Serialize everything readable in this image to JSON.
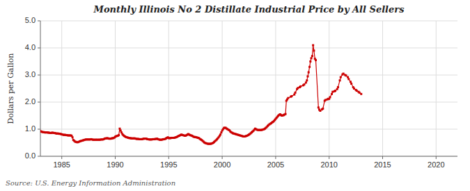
{
  "chart_data": {
    "type": "line",
    "title": "Monthly Illinois No 2 Distillate Industrial Price by All Sellers",
    "ylabel": "Dollars per Gallon",
    "annotations": [
      "Source: U.S. Energy Information Administration"
    ],
    "color": "#cc0000",
    "marker": "square",
    "grid": true,
    "xlim": [
      1983,
      2022
    ],
    "ylim": [
      0.0,
      5.0
    ],
    "xticks": [
      1985,
      1990,
      1995,
      2000,
      2005,
      2010,
      2015,
      2020
    ],
    "yticks": [
      {
        "value": 0.0,
        "label": "0.0"
      },
      {
        "value": 1.0,
        "label": "1.0"
      },
      {
        "value": 2.0,
        "label": "2.0"
      },
      {
        "value": 3.0,
        "label": "3.0"
      },
      {
        "value": 4.0,
        "label": "4.0"
      },
      {
        "value": 5.0,
        "label": "5.0"
      }
    ],
    "x": [
      1983.0,
      1983.08,
      1983.17,
      1983.25,
      1983.33,
      1983.42,
      1983.5,
      1983.58,
      1983.67,
      1983.75,
      1983.83,
      1983.92,
      1984.0,
      1984.08,
      1984.17,
      1984.25,
      1984.33,
      1984.42,
      1984.5,
      1984.58,
      1984.67,
      1984.75,
      1984.83,
      1984.92,
      1985.0,
      1985.08,
      1985.17,
      1985.25,
      1985.33,
      1985.42,
      1985.5,
      1985.58,
      1985.67,
      1985.75,
      1985.83,
      1985.92,
      1986.0,
      1986.08,
      1986.17,
      1986.25,
      1986.33,
      1986.42,
      1986.5,
      1986.58,
      1986.67,
      1986.75,
      1986.83,
      1986.92,
      1987.0,
      1987.08,
      1987.17,
      1987.25,
      1987.33,
      1987.42,
      1987.5,
      1987.58,
      1987.67,
      1987.75,
      1987.83,
      1987.92,
      1988.0,
      1988.08,
      1988.17,
      1988.25,
      1988.33,
      1988.42,
      1988.5,
      1988.58,
      1988.67,
      1988.75,
      1988.83,
      1988.92,
      1989.0,
      1989.08,
      1989.17,
      1989.25,
      1989.33,
      1989.42,
      1989.5,
      1989.58,
      1989.67,
      1989.75,
      1989.83,
      1989.92,
      1990.0,
      1990.08,
      1990.17,
      1990.25,
      1990.33,
      1990.42,
      1990.5,
      1990.58,
      1990.67,
      1990.75,
      1990.83,
      1990.92,
      1991.0,
      1991.08,
      1991.17,
      1991.25,
      1991.33,
      1991.42,
      1991.5,
      1991.58,
      1991.67,
      1991.75,
      1991.83,
      1991.92,
      1992.0,
      1992.08,
      1992.17,
      1992.25,
      1992.33,
      1992.42,
      1992.5,
      1992.58,
      1992.67,
      1992.75,
      1992.83,
      1992.92,
      1993.0,
      1993.08,
      1993.17,
      1993.25,
      1993.33,
      1993.42,
      1993.5,
      1993.58,
      1993.67,
      1993.75,
      1993.83,
      1993.92,
      1994.0,
      1994.08,
      1994.17,
      1994.25,
      1994.33,
      1994.42,
      1994.5,
      1994.58,
      1994.67,
      1994.75,
      1994.83,
      1994.92,
      1995.0,
      1995.08,
      1995.17,
      1995.25,
      1995.33,
      1995.42,
      1995.5,
      1995.58,
      1995.67,
      1995.75,
      1995.83,
      1995.92,
      1996.0,
      1996.08,
      1996.17,
      1996.25,
      1996.33,
      1996.42,
      1996.5,
      1996.58,
      1996.67,
      1996.75,
      1996.83,
      1996.92,
      1997.0,
      1997.08,
      1997.17,
      1997.25,
      1997.33,
      1997.42,
      1997.5,
      1997.58,
      1997.67,
      1997.75,
      1997.83,
      1997.92,
      1998.0,
      1998.08,
      1998.17,
      1998.25,
      1998.33,
      1998.42,
      1998.5,
      1998.58,
      1998.67,
      1998.75,
      1998.83,
      1998.92,
      1999.0,
      1999.08,
      1999.17,
      1999.25,
      1999.33,
      1999.42,
      1999.5,
      1999.58,
      1999.67,
      1999.75,
      1999.83,
      1999.92,
      2000.0,
      2000.08,
      2000.17,
      2000.25,
      2000.33,
      2000.42,
      2000.5,
      2000.58,
      2000.67,
      2000.75,
      2000.83,
      2000.92,
      2001.0,
      2001.08,
      2001.17,
      2001.25,
      2001.33,
      2001.42,
      2001.5,
      2001.58,
      2001.67,
      2001.75,
      2001.83,
      2001.92,
      2002.0,
      2002.08,
      2002.17,
      2002.25,
      2002.33,
      2002.42,
      2002.5,
      2002.58,
      2002.67,
      2002.75,
      2002.83,
      2002.92,
      2003.0,
      2003.08,
      2003.17,
      2003.25,
      2003.33,
      2003.42,
      2003.5,
      2003.58,
      2003.67,
      2003.75,
      2003.83,
      2003.92,
      2004.0,
      2004.08,
      2004.17,
      2004.25,
      2004.33,
      2004.42,
      2004.5,
      2004.58,
      2004.67,
      2004.75,
      2004.83,
      2004.92,
      2005.0,
      2005.08,
      2005.17,
      2005.25,
      2005.33,
      2005.42,
      2005.5,
      2005.58,
      2005.67,
      2005.75,
      2005.83,
      2005.92,
      2006.0,
      2006.08,
      2006.17,
      2006.42,
      2006.5,
      2006.75,
      2006.83,
      2007.0,
      2007.08,
      2007.25,
      2007.33,
      2007.58,
      2007.67,
      2007.83,
      2007.92,
      2008.0,
      2008.08,
      2008.17,
      2008.25,
      2008.33,
      2008.42,
      2008.5,
      2008.58,
      2008.67,
      2008.75,
      2009.0,
      2009.08,
      2009.17,
      2009.33,
      2009.42,
      2009.58,
      2009.67,
      2009.83,
      2009.92,
      2010.0,
      2010.08,
      2010.25,
      2010.33,
      2010.5,
      2010.58,
      2010.75,
      2010.83,
      2011.0,
      2011.08,
      2011.25,
      2011.33,
      2011.5,
      2011.58,
      2011.75,
      2011.83,
      2012.0,
      2012.08,
      2012.25,
      2012.33,
      2012.5,
      2012.58,
      2012.75,
      2012.83,
      2013.0
    ],
    "values": [
      0.93,
      0.91,
      0.9,
      0.89,
      0.89,
      0.88,
      0.88,
      0.88,
      0.88,
      0.87,
      0.87,
      0.86,
      0.86,
      0.87,
      0.87,
      0.86,
      0.86,
      0.85,
      0.84,
      0.84,
      0.84,
      0.83,
      0.83,
      0.82,
      0.81,
      0.8,
      0.79,
      0.79,
      0.79,
      0.78,
      0.78,
      0.77,
      0.77,
      0.77,
      0.77,
      0.76,
      0.7,
      0.6,
      0.57,
      0.54,
      0.53,
      0.52,
      0.52,
      0.53,
      0.55,
      0.56,
      0.57,
      0.58,
      0.59,
      0.6,
      0.61,
      0.62,
      0.62,
      0.62,
      0.62,
      0.62,
      0.62,
      0.63,
      0.62,
      0.61,
      0.61,
      0.61,
      0.61,
      0.61,
      0.61,
      0.61,
      0.61,
      0.61,
      0.62,
      0.62,
      0.62,
      0.63,
      0.65,
      0.66,
      0.66,
      0.67,
      0.66,
      0.65,
      0.65,
      0.65,
      0.66,
      0.67,
      0.67,
      0.69,
      0.72,
      0.74,
      0.75,
      0.76,
      0.78,
      1.02,
      0.95,
      0.88,
      0.82,
      0.78,
      0.75,
      0.73,
      0.71,
      0.7,
      0.69,
      0.68,
      0.67,
      0.67,
      0.66,
      0.66,
      0.66,
      0.66,
      0.66,
      0.65,
      0.64,
      0.64,
      0.64,
      0.63,
      0.63,
      0.63,
      0.63,
      0.64,
      0.65,
      0.65,
      0.65,
      0.65,
      0.63,
      0.63,
      0.62,
      0.62,
      0.62,
      0.62,
      0.63,
      0.63,
      0.63,
      0.64,
      0.64,
      0.65,
      0.63,
      0.62,
      0.61,
      0.61,
      0.61,
      0.62,
      0.63,
      0.63,
      0.64,
      0.66,
      0.68,
      0.7,
      0.67,
      0.67,
      0.67,
      0.68,
      0.68,
      0.68,
      0.68,
      0.69,
      0.7,
      0.71,
      0.73,
      0.75,
      0.76,
      0.78,
      0.8,
      0.79,
      0.78,
      0.77,
      0.76,
      0.76,
      0.78,
      0.8,
      0.82,
      0.8,
      0.78,
      0.77,
      0.76,
      0.74,
      0.72,
      0.71,
      0.71,
      0.7,
      0.69,
      0.68,
      0.67,
      0.64,
      0.62,
      0.6,
      0.57,
      0.54,
      0.51,
      0.49,
      0.48,
      0.47,
      0.46,
      0.46,
      0.46,
      0.46,
      0.47,
      0.48,
      0.5,
      0.53,
      0.56,
      0.59,
      0.62,
      0.66,
      0.7,
      0.75,
      0.8,
      0.88,
      0.95,
      1.0,
      1.05,
      1.05,
      1.05,
      1.02,
      1.0,
      0.98,
      0.96,
      0.92,
      0.89,
      0.87,
      0.85,
      0.84,
      0.83,
      0.82,
      0.81,
      0.8,
      0.79,
      0.78,
      0.77,
      0.76,
      0.75,
      0.74,
      0.73,
      0.73,
      0.74,
      0.75,
      0.76,
      0.78,
      0.8,
      0.82,
      0.85,
      0.88,
      0.91,
      0.94,
      0.98,
      1.02,
      1.0,
      0.98,
      0.97,
      0.97,
      0.97,
      0.97,
      0.97,
      0.98,
      0.99,
      1.0,
      1.02,
      1.05,
      1.08,
      1.12,
      1.15,
      1.18,
      1.2,
      1.22,
      1.25,
      1.27,
      1.3,
      1.34,
      1.38,
      1.42,
      1.46,
      1.5,
      1.53,
      1.55,
      1.52,
      1.5,
      1.51,
      1.52,
      1.54,
      1.56,
      2.05,
      2.1,
      2.15,
      2.2,
      2.22,
      2.28,
      2.35,
      2.48,
      2.52,
      2.55,
      2.58,
      2.62,
      2.65,
      2.72,
      2.8,
      2.95,
      3.1,
      3.3,
      3.5,
      3.62,
      3.7,
      4.1,
      3.9,
      3.6,
      3.55,
      1.8,
      1.72,
      1.68,
      1.73,
      1.76,
      2.05,
      2.08,
      2.1,
      2.12,
      2.12,
      2.18,
      2.3,
      2.38,
      2.4,
      2.42,
      2.48,
      2.55,
      2.8,
      2.92,
      3.02,
      3.05,
      3.0,
      2.98,
      2.92,
      2.85,
      2.75,
      2.68,
      2.55,
      2.5,
      2.45,
      2.42,
      2.38,
      2.35,
      2.3
    ]
  }
}
